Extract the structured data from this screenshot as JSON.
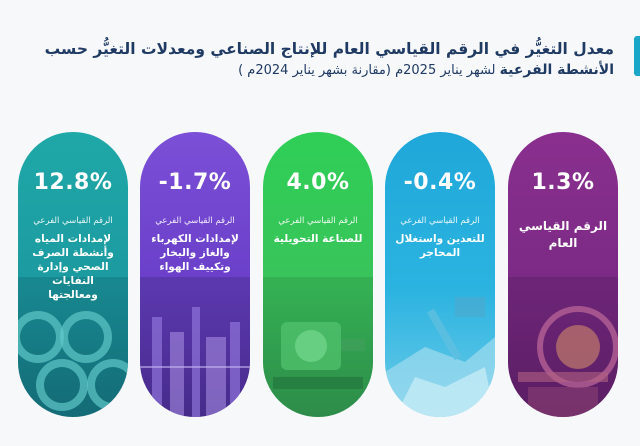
{
  "header": {
    "title_line1": "معدل التغيُّر في الرقم القياسي العام للإنتاج الصناعي ومعدلات التغيُّر حسب",
    "title_line2_bold": "الأنشطة الفرعية",
    "title_line2_rest": " لشهر يناير 2025م (مقارنة بشهر يناير 2024م )"
  },
  "pills": [
    {
      "id": "general",
      "value": "1.3%",
      "sub": "",
      "name": "الرقم القياسي العام"
    },
    {
      "id": "mining",
      "value": "-0.4%",
      "sub": "الرقم القياسي الفرعي",
      "name": "للتعدين واستغلال المحاجر"
    },
    {
      "id": "manuf",
      "value": "4.0%",
      "sub": "الرقم القياسي الفرعي",
      "name": "للصناعة التحويلية"
    },
    {
      "id": "elec",
      "value": "-1.7%",
      "sub": "الرقم القياسي الفرعي",
      "name": "لإمدادات الكهرباء والغاز والبخار وتكييف الهواء"
    },
    {
      "id": "water",
      "value": "12.8%",
      "sub": "الرقم القياسي الفرعي",
      "name": "لإمدادات المياه وأنشطة الصرف الصحي وإدارة النفايات ومعالجتها"
    }
  ],
  "colors": {
    "title": "#1f3a63",
    "accent": "#1aa6c8",
    "general": "#7a2a84",
    "mining": "#2bb3e0",
    "manuf": "#39c35a",
    "elec": "#6a3fc9",
    "water": "#1c9aa0"
  }
}
